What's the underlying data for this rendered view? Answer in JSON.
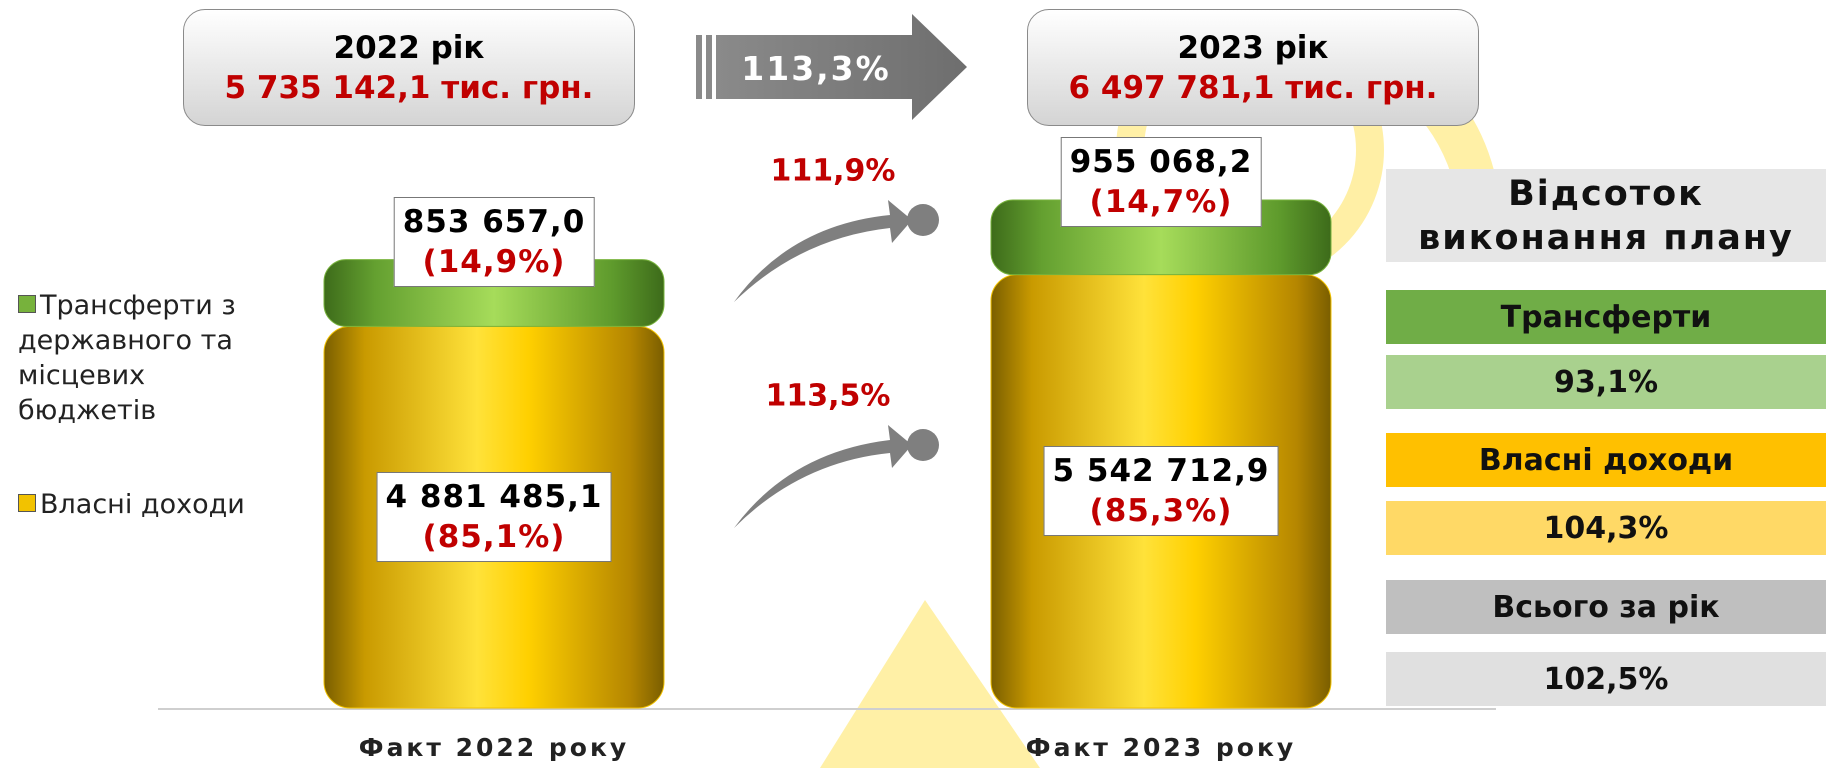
{
  "chart_data": {
    "type": "bar",
    "stacked": true,
    "categories": [
      "Факт 2022 року",
      "Факт 2023 року"
    ],
    "totals": [
      {
        "year": "2022 рік",
        "amount": "5 735 142,1 тис. грн."
      },
      {
        "year": "2023 рік",
        "amount": "6 497 781,1 тис. грн."
      }
    ],
    "total_growth": "113,3%",
    "series": [
      {
        "name": "Власні доходи",
        "color": "#f2c200",
        "values": [
          4881485.1,
          5542712.9
        ],
        "value_labels": [
          "4 881 485,1",
          "5 542 712,9"
        ],
        "share_labels": [
          "(85,1%)",
          "(85,3%)"
        ],
        "growth": "113,5%"
      },
      {
        "name": "Трансферти з державного та місцевих бюджетів",
        "color": "#77b23c",
        "values": [
          853657.0,
          955068.2
        ],
        "value_labels": [
          "853 657,0",
          "955 068,2"
        ],
        "share_labels": [
          "(14,9%)",
          "(14,7%)"
        ],
        "growth": "111,9%"
      }
    ],
    "plan": {
      "title": "Відсоток виконання плану",
      "items": [
        {
          "label": "Трансферти",
          "value": "93,1%"
        },
        {
          "label": "Власні доходи",
          "value": "104,3%"
        },
        {
          "label": "Всього за рік",
          "value": "102,5%"
        }
      ]
    }
  }
}
